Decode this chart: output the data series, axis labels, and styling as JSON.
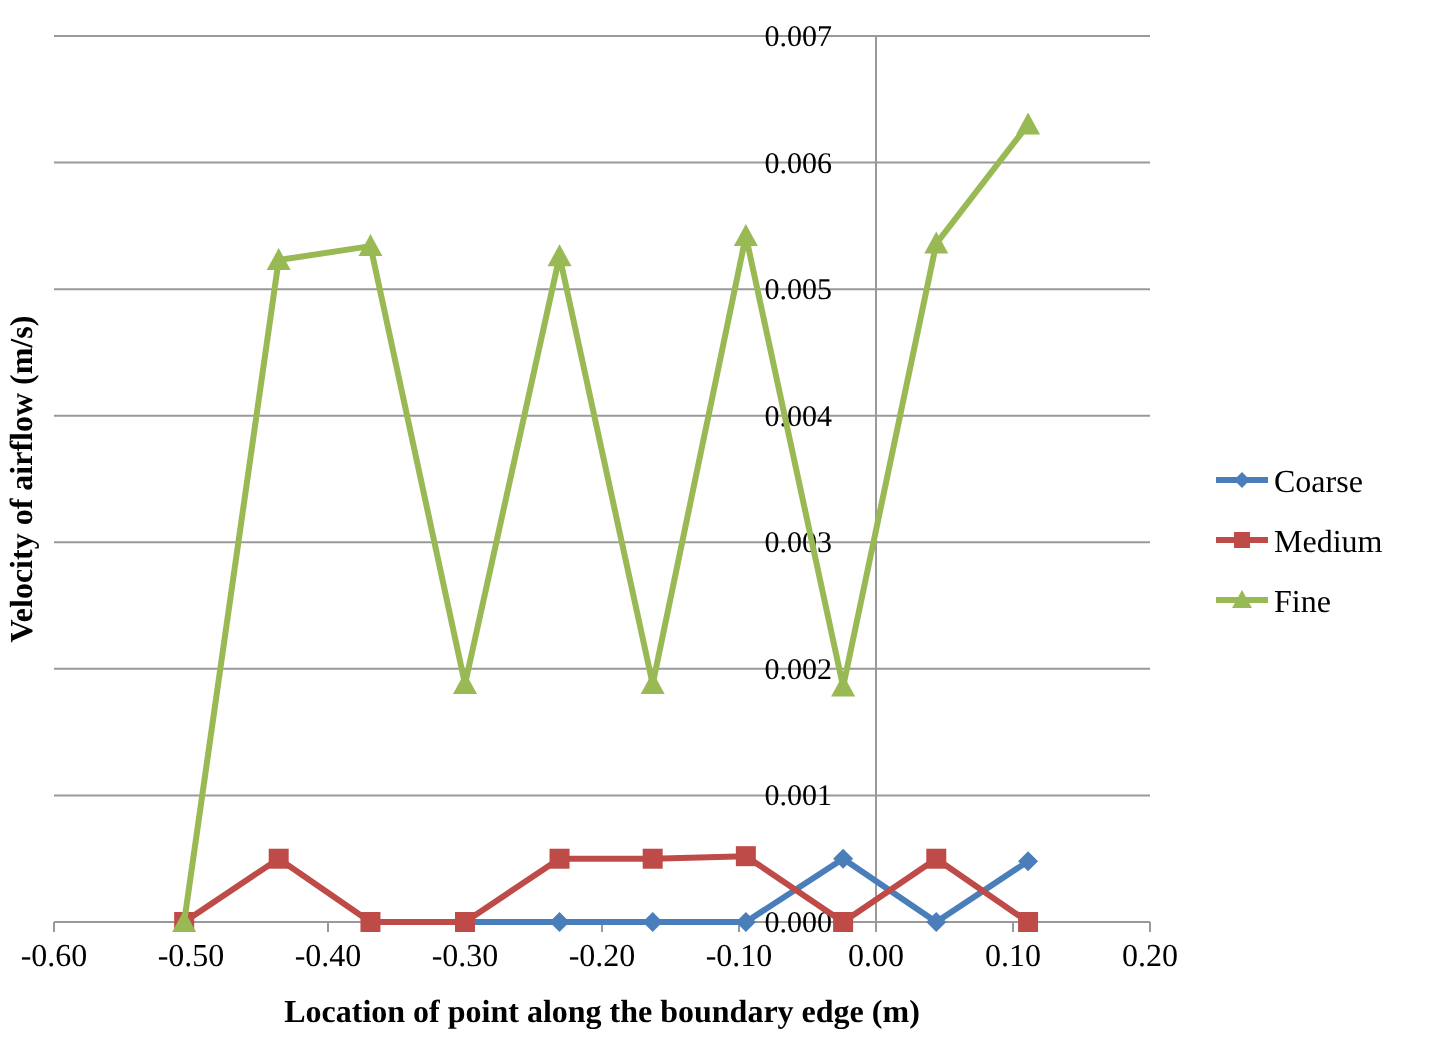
{
  "chart_data": {
    "type": "line",
    "xlabel": "Location of point along the boundary edge (m)",
    "ylabel": "Velocity of airflow (m/s)",
    "x": [
      -0.505,
      -0.436,
      -0.369,
      -0.3,
      -0.231,
      -0.163,
      -0.095,
      -0.024,
      0.044,
      0.111
    ],
    "series": [
      {
        "name": "Coarse",
        "color": "#4a7ebb",
        "marker": "diamond",
        "values": [
          null,
          null,
          null,
          0,
          0,
          0,
          0,
          0.0005,
          0,
          0.00048
        ]
      },
      {
        "name": "Medium",
        "color": "#be4b48",
        "marker": "square",
        "values": [
          0,
          0.0005,
          0,
          0,
          0.0005,
          0.0005,
          0.00052,
          0,
          0.0005,
          0
        ]
      },
      {
        "name": "Fine",
        "color": "#98b954",
        "marker": "triangle",
        "values": [
          0,
          0.00523,
          0.00534,
          0.00188,
          0.00526,
          0.00188,
          0.00542,
          0.00186,
          0.00536,
          0.0063
        ]
      }
    ],
    "xlim": [
      -0.6,
      0.2
    ],
    "ylim": [
      0,
      0.007
    ],
    "xticks": [
      {
        "value": -0.6,
        "label": "-0.60"
      },
      {
        "value": -0.5,
        "label": "-0.50"
      },
      {
        "value": -0.4,
        "label": "-0.40"
      },
      {
        "value": -0.3,
        "label": "-0.30"
      },
      {
        "value": -0.2,
        "label": "-0.20"
      },
      {
        "value": -0.1,
        "label": "-0.10"
      },
      {
        "value": 0,
        "label": "0.00"
      },
      {
        "value": 0.1,
        "label": "0.10"
      },
      {
        "value": 0.2,
        "label": "0.20"
      }
    ],
    "yticks": [
      {
        "value": 0,
        "label": "0.000"
      },
      {
        "value": 0.001,
        "label": "0.001"
      },
      {
        "value": 0.002,
        "label": "0.002"
      },
      {
        "value": 0.003,
        "label": "0.003"
      },
      {
        "value": 0.004,
        "label": "0.004"
      },
      {
        "value": 0.005,
        "label": "0.005"
      },
      {
        "value": 0.006,
        "label": "0.006"
      },
      {
        "value": 0.007,
        "label": "0.007"
      }
    ],
    "grid": "y",
    "legend": "right"
  }
}
